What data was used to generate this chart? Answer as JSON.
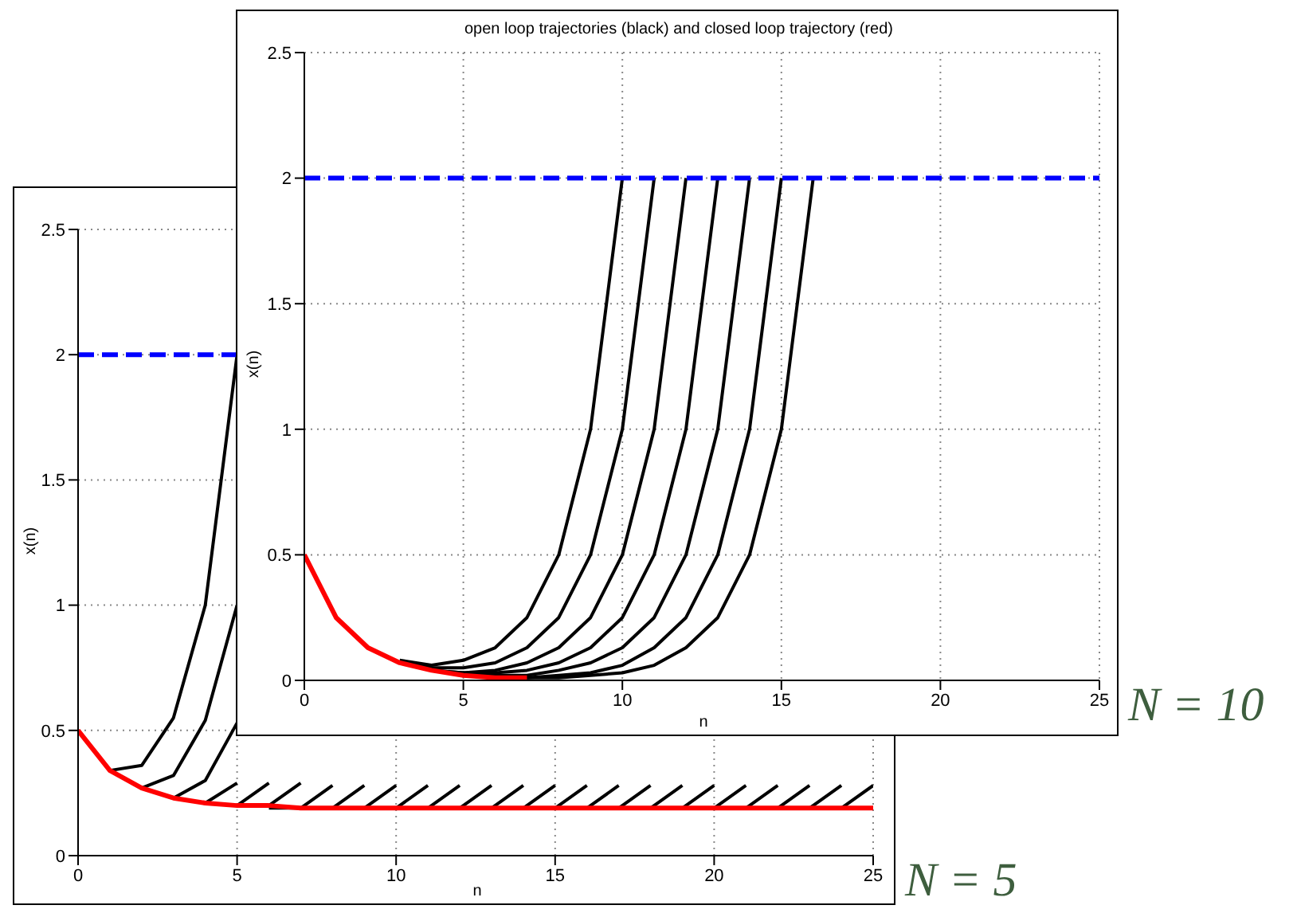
{
  "chart_data": [
    {
      "type": "line",
      "title": "open loop trajectories (black) and closed loop trajectory (red)",
      "xlabel": "n",
      "ylabel": "x(n)",
      "xlim": [
        0,
        25
      ],
      "ylim": [
        0,
        2.5
      ],
      "xticks": [
        0,
        5,
        10,
        15,
        20,
        25
      ],
      "yticks": [
        0,
        0.5,
        1,
        1.5,
        2,
        2.5
      ],
      "grid": true,
      "ref_lines": [
        {
          "axis": "y",
          "value": 2,
          "color": "#0000ff",
          "line_style": "dashed"
        }
      ],
      "annotations": [
        "N = 10"
      ],
      "series": [
        {
          "color": "#000000",
          "x": [
            3,
            4,
            5,
            6,
            7,
            8,
            9,
            10
          ],
          "values": [
            0.08,
            0.06,
            0.08,
            0.13,
            0.25,
            0.5,
            1,
            2
          ]
        },
        {
          "color": "#000000",
          "x": [
            3,
            4,
            5,
            6,
            7,
            8,
            9,
            10,
            11
          ],
          "values": [
            0.07,
            0.05,
            0.05,
            0.07,
            0.13,
            0.25,
            0.5,
            1,
            2
          ]
        },
        {
          "color": "#000000",
          "x": [
            3,
            4,
            5,
            6,
            7,
            8,
            9,
            10,
            11,
            12
          ],
          "values": [
            0.07,
            0.04,
            0.03,
            0.04,
            0.07,
            0.13,
            0.25,
            0.5,
            1,
            2
          ]
        },
        {
          "color": "#000000",
          "x": [
            3,
            4,
            5,
            6,
            7,
            8,
            9,
            10,
            11,
            12,
            13
          ],
          "values": [
            0.07,
            0.04,
            0.03,
            0.03,
            0.04,
            0.07,
            0.13,
            0.25,
            0.5,
            1,
            2
          ]
        },
        {
          "color": "#000000",
          "x": [
            4,
            5,
            6,
            7,
            8,
            9,
            10,
            11,
            12,
            13,
            14
          ],
          "values": [
            0.04,
            0.02,
            0.02,
            0.02,
            0.04,
            0.07,
            0.13,
            0.25,
            0.5,
            1,
            2
          ]
        },
        {
          "color": "#000000",
          "x": [
            5,
            6,
            7,
            8,
            9,
            10,
            11,
            12,
            13,
            14,
            15
          ],
          "values": [
            0.02,
            0.01,
            0.01,
            0.02,
            0.03,
            0.06,
            0.13,
            0.25,
            0.5,
            1,
            2
          ]
        },
        {
          "color": "#000000",
          "x": [
            6,
            7,
            8,
            9,
            10,
            11,
            12,
            13,
            14,
            15,
            16
          ],
          "values": [
            0.01,
            0.01,
            0.01,
            0.02,
            0.03,
            0.06,
            0.13,
            0.25,
            0.5,
            1,
            2
          ]
        },
        {
          "color": "#ff0000",
          "x": [
            0,
            1,
            2,
            3,
            4,
            5,
            6,
            7
          ],
          "values": [
            0.5,
            0.25,
            0.13,
            0.07,
            0.04,
            0.02,
            0.01,
            0.01
          ]
        }
      ]
    },
    {
      "type": "line",
      "xlabel": "n",
      "ylabel": "x(n)",
      "xlim": [
        0,
        25
      ],
      "ylim": [
        0,
        2.5
      ],
      "xticks": [
        0,
        5,
        10,
        15,
        20,
        25
      ],
      "yticks": [
        0,
        0.5,
        1,
        1.5,
        2,
        2.5
      ],
      "grid": true,
      "ref_lines": [
        {
          "axis": "y",
          "value": 2,
          "color": "#0000ff",
          "line_style": "dashed"
        }
      ],
      "annotations": [
        "N = 5"
      ],
      "series": [
        {
          "color": "#000000",
          "x": [
            0,
            1,
            2,
            3,
            4,
            5
          ],
          "values": [
            0.5,
            0.34,
            0.36,
            0.55,
            1,
            2
          ]
        },
        {
          "color": "#000000",
          "x": [
            1,
            2,
            3,
            4,
            5
          ],
          "values": [
            0.34,
            0.27,
            0.32,
            0.54,
            1
          ]
        },
        {
          "color": "#000000",
          "x": [
            2,
            3,
            4,
            5
          ],
          "values": [
            0.27,
            0.23,
            0.3,
            0.53
          ]
        },
        {
          "color": "#000000",
          "x": [
            3,
            4,
            5
          ],
          "values": [
            0.23,
            0.21,
            0.29
          ]
        },
        {
          "color": "#000000",
          "x": [
            4,
            5,
            6
          ],
          "values": [
            0.21,
            0.2,
            0.29
          ]
        },
        {
          "color": "#000000",
          "x": [
            5,
            6,
            7
          ],
          "values": [
            0.2,
            0.2,
            0.29
          ]
        },
        {
          "color": "#000000",
          "x": [
            6,
            7,
            8
          ],
          "values": [
            0.19,
            0.19,
            0.28
          ]
        },
        {
          "color": "#000000",
          "x": [
            7,
            8,
            9
          ],
          "values": [
            0.19,
            0.19,
            0.28
          ]
        },
        {
          "color": "#000000",
          "x": [
            8,
            9,
            10
          ],
          "values": [
            0.19,
            0.19,
            0.28
          ]
        },
        {
          "color": "#000000",
          "x": [
            9,
            10,
            11
          ],
          "values": [
            0.19,
            0.19,
            0.28
          ]
        },
        {
          "color": "#000000",
          "x": [
            10,
            11,
            12
          ],
          "values": [
            0.19,
            0.19,
            0.28
          ]
        },
        {
          "color": "#000000",
          "x": [
            11,
            12,
            13
          ],
          "values": [
            0.19,
            0.19,
            0.28
          ]
        },
        {
          "color": "#000000",
          "x": [
            12,
            13,
            14
          ],
          "values": [
            0.19,
            0.19,
            0.28
          ]
        },
        {
          "color": "#000000",
          "x": [
            13,
            14,
            15
          ],
          "values": [
            0.19,
            0.19,
            0.28
          ]
        },
        {
          "color": "#000000",
          "x": [
            14,
            15,
            16
          ],
          "values": [
            0.19,
            0.19,
            0.28
          ]
        },
        {
          "color": "#000000",
          "x": [
            15,
            16,
            17
          ],
          "values": [
            0.19,
            0.19,
            0.28
          ]
        },
        {
          "color": "#000000",
          "x": [
            16,
            17,
            18
          ],
          "values": [
            0.19,
            0.19,
            0.28
          ]
        },
        {
          "color": "#000000",
          "x": [
            17,
            18,
            19
          ],
          "values": [
            0.19,
            0.19,
            0.28
          ]
        },
        {
          "color": "#000000",
          "x": [
            18,
            19,
            20
          ],
          "values": [
            0.19,
            0.19,
            0.28
          ]
        },
        {
          "color": "#000000",
          "x": [
            19,
            20,
            21
          ],
          "values": [
            0.19,
            0.19,
            0.28
          ]
        },
        {
          "color": "#000000",
          "x": [
            20,
            21,
            22
          ],
          "values": [
            0.19,
            0.19,
            0.28
          ]
        },
        {
          "color": "#000000",
          "x": [
            21,
            22,
            23
          ],
          "values": [
            0.19,
            0.19,
            0.28
          ]
        },
        {
          "color": "#000000",
          "x": [
            22,
            23,
            24
          ],
          "values": [
            0.19,
            0.19,
            0.28
          ]
        },
        {
          "color": "#000000",
          "x": [
            23,
            24,
            25
          ],
          "values": [
            0.19,
            0.19,
            0.28
          ]
        },
        {
          "color": "#ff0000",
          "x": [
            0,
            1,
            2,
            3,
            4,
            5,
            6,
            7,
            8,
            9,
            10,
            11,
            12,
            13,
            14,
            15,
            16,
            17,
            18,
            19,
            20,
            21,
            22,
            23,
            24,
            25
          ],
          "values": [
            0.5,
            0.34,
            0.27,
            0.23,
            0.21,
            0.2,
            0.2,
            0.19,
            0.19,
            0.19,
            0.19,
            0.19,
            0.19,
            0.19,
            0.19,
            0.19,
            0.19,
            0.19,
            0.19,
            0.19,
            0.19,
            0.19,
            0.19,
            0.19,
            0.19,
            0.19
          ]
        }
      ]
    }
  ]
}
